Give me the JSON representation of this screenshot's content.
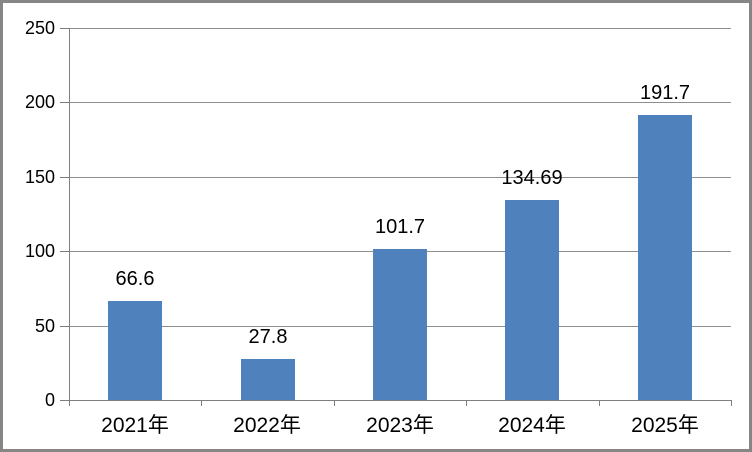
{
  "chart_data": {
    "type": "bar",
    "categories": [
      "2021年",
      "2022年",
      "2023年",
      "2024年",
      "2025年"
    ],
    "values": [
      66.6,
      27.8,
      101.7,
      134.69,
      191.7
    ],
    "data_labels": [
      "66.6",
      "27.8",
      "101.7",
      "134.69",
      "191.7"
    ],
    "title": "",
    "xlabel": "",
    "ylabel": "",
    "ylim": [
      0,
      250
    ],
    "yticks": [
      0,
      50,
      100,
      150,
      200,
      250
    ],
    "grid": true,
    "legend_position": "none",
    "bar_color": "#4F81BD"
  },
  "colors": {
    "bar_fill": "#4F81BD",
    "axis_line": "#7F7F7F",
    "gridline": "#8E8E8E",
    "chart_border": "#868686",
    "background": "#FFFFFF",
    "label_text": "#000000"
  }
}
